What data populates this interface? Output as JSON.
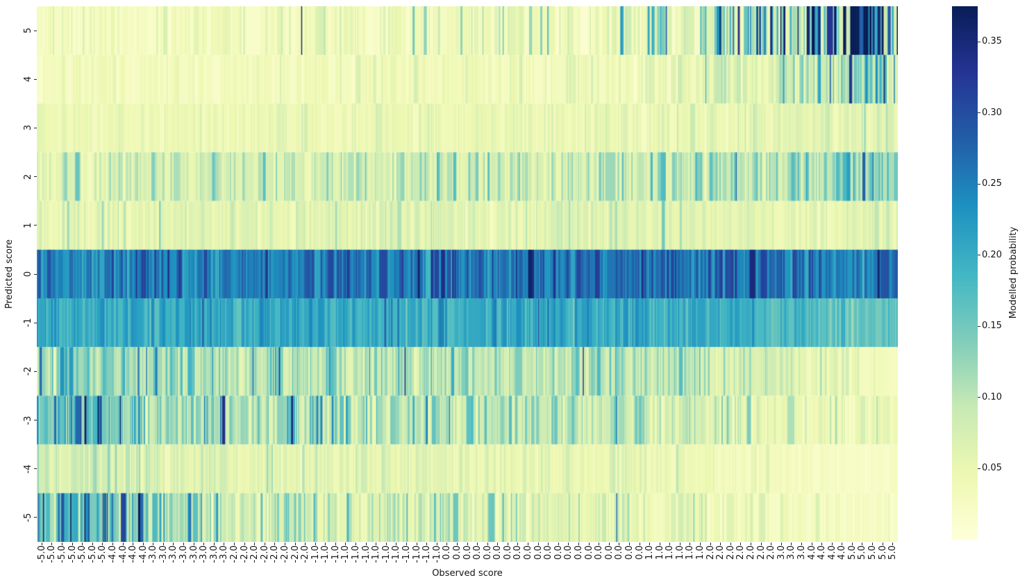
{
  "chart_data": {
    "type": "heatmap",
    "xlabel": "Observed score",
    "ylabel": "Predicted score",
    "colorbar_label": "Modelled probability",
    "vmin": 0.0,
    "vmax": 0.375,
    "colorbar_ticks": [
      "0.35",
      "0.30",
      "0.25",
      "0.20",
      "0.15",
      "0.10",
      "0.05"
    ],
    "colorbar_tick_values": [
      0.35,
      0.3,
      0.25,
      0.2,
      0.15,
      0.1,
      0.05
    ],
    "colormap": {
      "name": "YlGnBu",
      "stops": [
        [
          0.0,
          "#ffffd9"
        ],
        [
          0.125,
          "#edf8b1"
        ],
        [
          0.25,
          "#c7e9b4"
        ],
        [
          0.375,
          "#7fcdbb"
        ],
        [
          0.5,
          "#41b6c4"
        ],
        [
          0.625,
          "#1d91c0"
        ],
        [
          0.75,
          "#225ea8"
        ],
        [
          0.875,
          "#253494"
        ],
        [
          1.0,
          "#081d58"
        ]
      ]
    },
    "y_categories": [
      "5",
      "4",
      "3",
      "2",
      "1",
      "0",
      "-1",
      "-2",
      "-3",
      "-4",
      "-5"
    ],
    "x_tick_labels": [
      "-5.0",
      "-5.0",
      "-5.0",
      "-5.0",
      "-5.0",
      "-5.0",
      "-5.0",
      "-4.0",
      "-4.0",
      "-4.0",
      "-4.0",
      "-3.0",
      "-3.0",
      "-3.0",
      "-3.0",
      "-3.0",
      "-3.0",
      "-3.0",
      "-3.0",
      "-2.0",
      "-2.0",
      "-2.0",
      "-2.0",
      "-2.0",
      "-2.0",
      "-2.0",
      "-2.0",
      "-1.0",
      "-1.0",
      "-1.0",
      "-1.0",
      "-1.0",
      "-1.0",
      "-1.0",
      "-1.0",
      "-1.0",
      "-1.0",
      "-1.0",
      "-1.0",
      "-1.0",
      "0.0",
      "0.0",
      "0.0",
      "0.0",
      "0.0",
      "0.0",
      "0.0",
      "0.0",
      "0.0",
      "0.0",
      "0.0",
      "0.0",
      "0.0",
      "0.0",
      "0.0",
      "0.0",
      "0.0",
      "0.0",
      "0.0",
      "0.0",
      "1.0",
      "1.0",
      "1.0",
      "1.0",
      "1.0",
      "1.0",
      "2.0",
      "2.0",
      "2.0",
      "2.0",
      "2.0",
      "2.0",
      "2.0",
      "3.0",
      "3.0",
      "3.0",
      "4.0",
      "4.0",
      "4.0",
      "4.0",
      "5.0",
      "5.0",
      "5.0",
      "5.0",
      "5.0"
    ],
    "n_columns": 850,
    "x_range": [
      -5,
      5
    ],
    "profile_observed_scores": [
      -5,
      -4,
      -3,
      -2,
      -1,
      0,
      1,
      2,
      3,
      4,
      5
    ],
    "series": [
      {
        "name": "5",
        "values": [
          0.03,
          0.032,
          0.034,
          0.036,
          0.04,
          0.045,
          0.07,
          0.105,
          0.155,
          0.205,
          0.25
        ],
        "noise_sigma": [
          0.4,
          0.85
        ]
      },
      {
        "name": "4",
        "values": [
          0.03,
          0.03,
          0.032,
          0.033,
          0.035,
          0.038,
          0.048,
          0.065,
          0.09,
          0.12,
          0.15
        ],
        "noise_sigma": [
          0.3,
          0.5
        ]
      },
      {
        "name": "3",
        "values": [
          0.042,
          0.043,
          0.044,
          0.045,
          0.046,
          0.047,
          0.05,
          0.054,
          0.058,
          0.062,
          0.066
        ],
        "noise_sigma": [
          0.25,
          0.3
        ]
      },
      {
        "name": "2",
        "values": [
          0.07,
          0.072,
          0.074,
          0.077,
          0.08,
          0.082,
          0.09,
          0.1,
          0.112,
          0.124,
          0.136
        ],
        "noise_sigma": [
          0.35,
          0.35
        ]
      },
      {
        "name": "1",
        "values": [
          0.055,
          0.057,
          0.059,
          0.061,
          0.063,
          0.063,
          0.062,
          0.061,
          0.059,
          0.057,
          0.055
        ],
        "noise_sigma": [
          0.28,
          0.28
        ]
      },
      {
        "name": "0",
        "values": [
          0.24,
          0.246,
          0.252,
          0.258,
          0.262,
          0.265,
          0.264,
          0.262,
          0.258,
          0.254,
          0.25
        ],
        "noise_sigma": [
          0.13,
          0.13
        ]
      },
      {
        "name": "-1",
        "values": [
          0.2,
          0.204,
          0.208,
          0.21,
          0.208,
          0.206,
          0.2,
          0.191,
          0.18,
          0.167,
          0.152
        ],
        "noise_sigma": [
          0.11,
          0.14
        ]
      },
      {
        "name": "-2",
        "values": [
          0.12,
          0.117,
          0.114,
          0.111,
          0.108,
          0.104,
          0.092,
          0.078,
          0.062,
          0.048,
          0.036
        ],
        "noise_sigma": [
          0.33,
          0.35
        ]
      },
      {
        "name": "-3",
        "values": [
          0.175,
          0.148,
          0.128,
          0.113,
          0.104,
          0.096,
          0.08,
          0.066,
          0.055,
          0.048,
          0.044
        ],
        "noise_sigma": [
          0.4,
          0.38
        ]
      },
      {
        "name": "-4",
        "values": [
          0.08,
          0.072,
          0.065,
          0.06,
          0.056,
          0.053,
          0.045,
          0.038,
          0.031,
          0.026,
          0.022
        ],
        "noise_sigma": [
          0.3,
          0.32
        ]
      },
      {
        "name": "-5",
        "values": [
          0.185,
          0.14,
          0.108,
          0.087,
          0.074,
          0.066,
          0.051,
          0.04,
          0.032,
          0.027,
          0.023
        ],
        "noise_sigma": [
          0.5,
          0.4
        ]
      }
    ],
    "noise": {
      "seed": 42,
      "hold_prob": 0.38
    }
  }
}
